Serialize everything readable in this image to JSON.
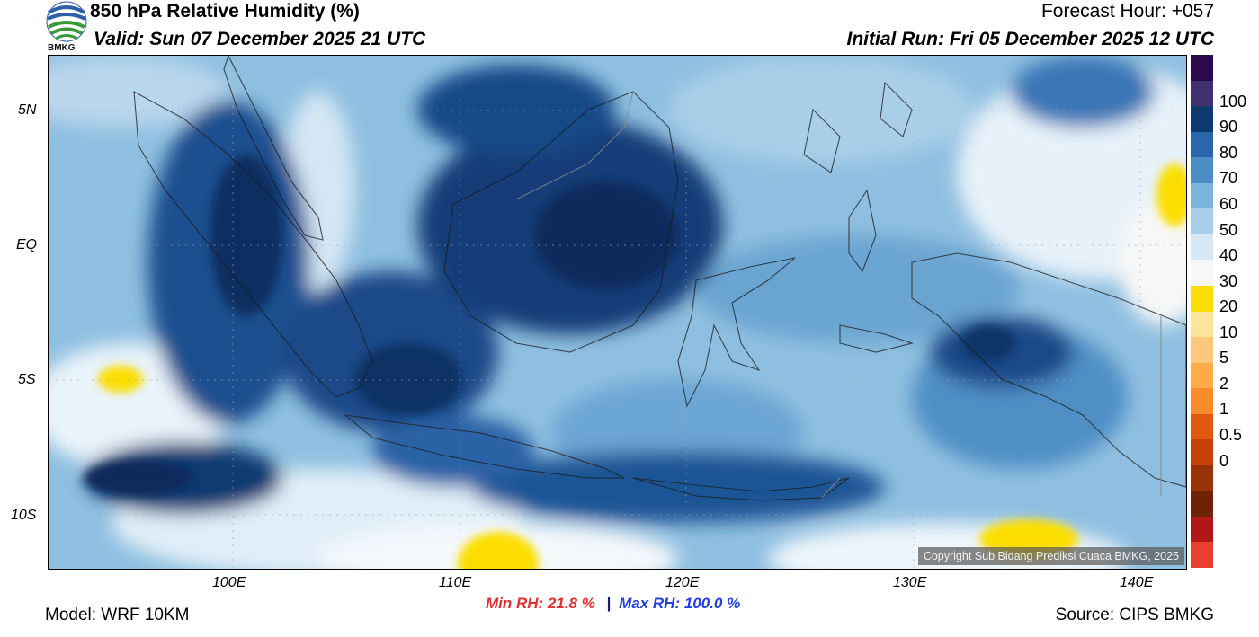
{
  "header": {
    "title": "850 hPa Relative Humidity (%)",
    "valid": "Valid: Sun 07 December 2025 21 UTC",
    "forecast_hour": "Forecast Hour: +057",
    "initial_run": "Initial Run: Fri 05 December 2025 12 UTC",
    "logo_text": "BMKG"
  },
  "map": {
    "lat_ticks": [
      "5N",
      "EQ",
      "5S",
      "10S"
    ],
    "lon_ticks": [
      "100E",
      "110E",
      "120E",
      "130E",
      "140E"
    ],
    "copyright": "Copyright Sub Bidang Prediksi Cuaca BMKG, 2025"
  },
  "colorbar": {
    "labels": [
      "100",
      "90",
      "80",
      "70",
      "60",
      "50",
      "40",
      "30",
      "20",
      "10",
      "5",
      "2",
      "1",
      "0.5",
      "0"
    ],
    "colors": [
      "#2a0a4a",
      "#41306e",
      "#0e3a6e",
      "#2a66ac",
      "#4a8cc4",
      "#7ab3dc",
      "#a7cde8",
      "#d6e8f4",
      "#f7f7f7",
      "#fbde04",
      "#fce59a",
      "#fdc87a",
      "#fdac48",
      "#f98c28",
      "#e1590f",
      "#c7410b",
      "#9a3208",
      "#6e2404",
      "#b01818",
      "#e8402e"
    ]
  },
  "stats": {
    "min": "Min RH:  21.8 %",
    "separator": "|",
    "max": "Max RH: 100.0 %"
  },
  "footer": {
    "model": "Model: WRF 10KM",
    "source": "Source: CIPS BMKG"
  }
}
